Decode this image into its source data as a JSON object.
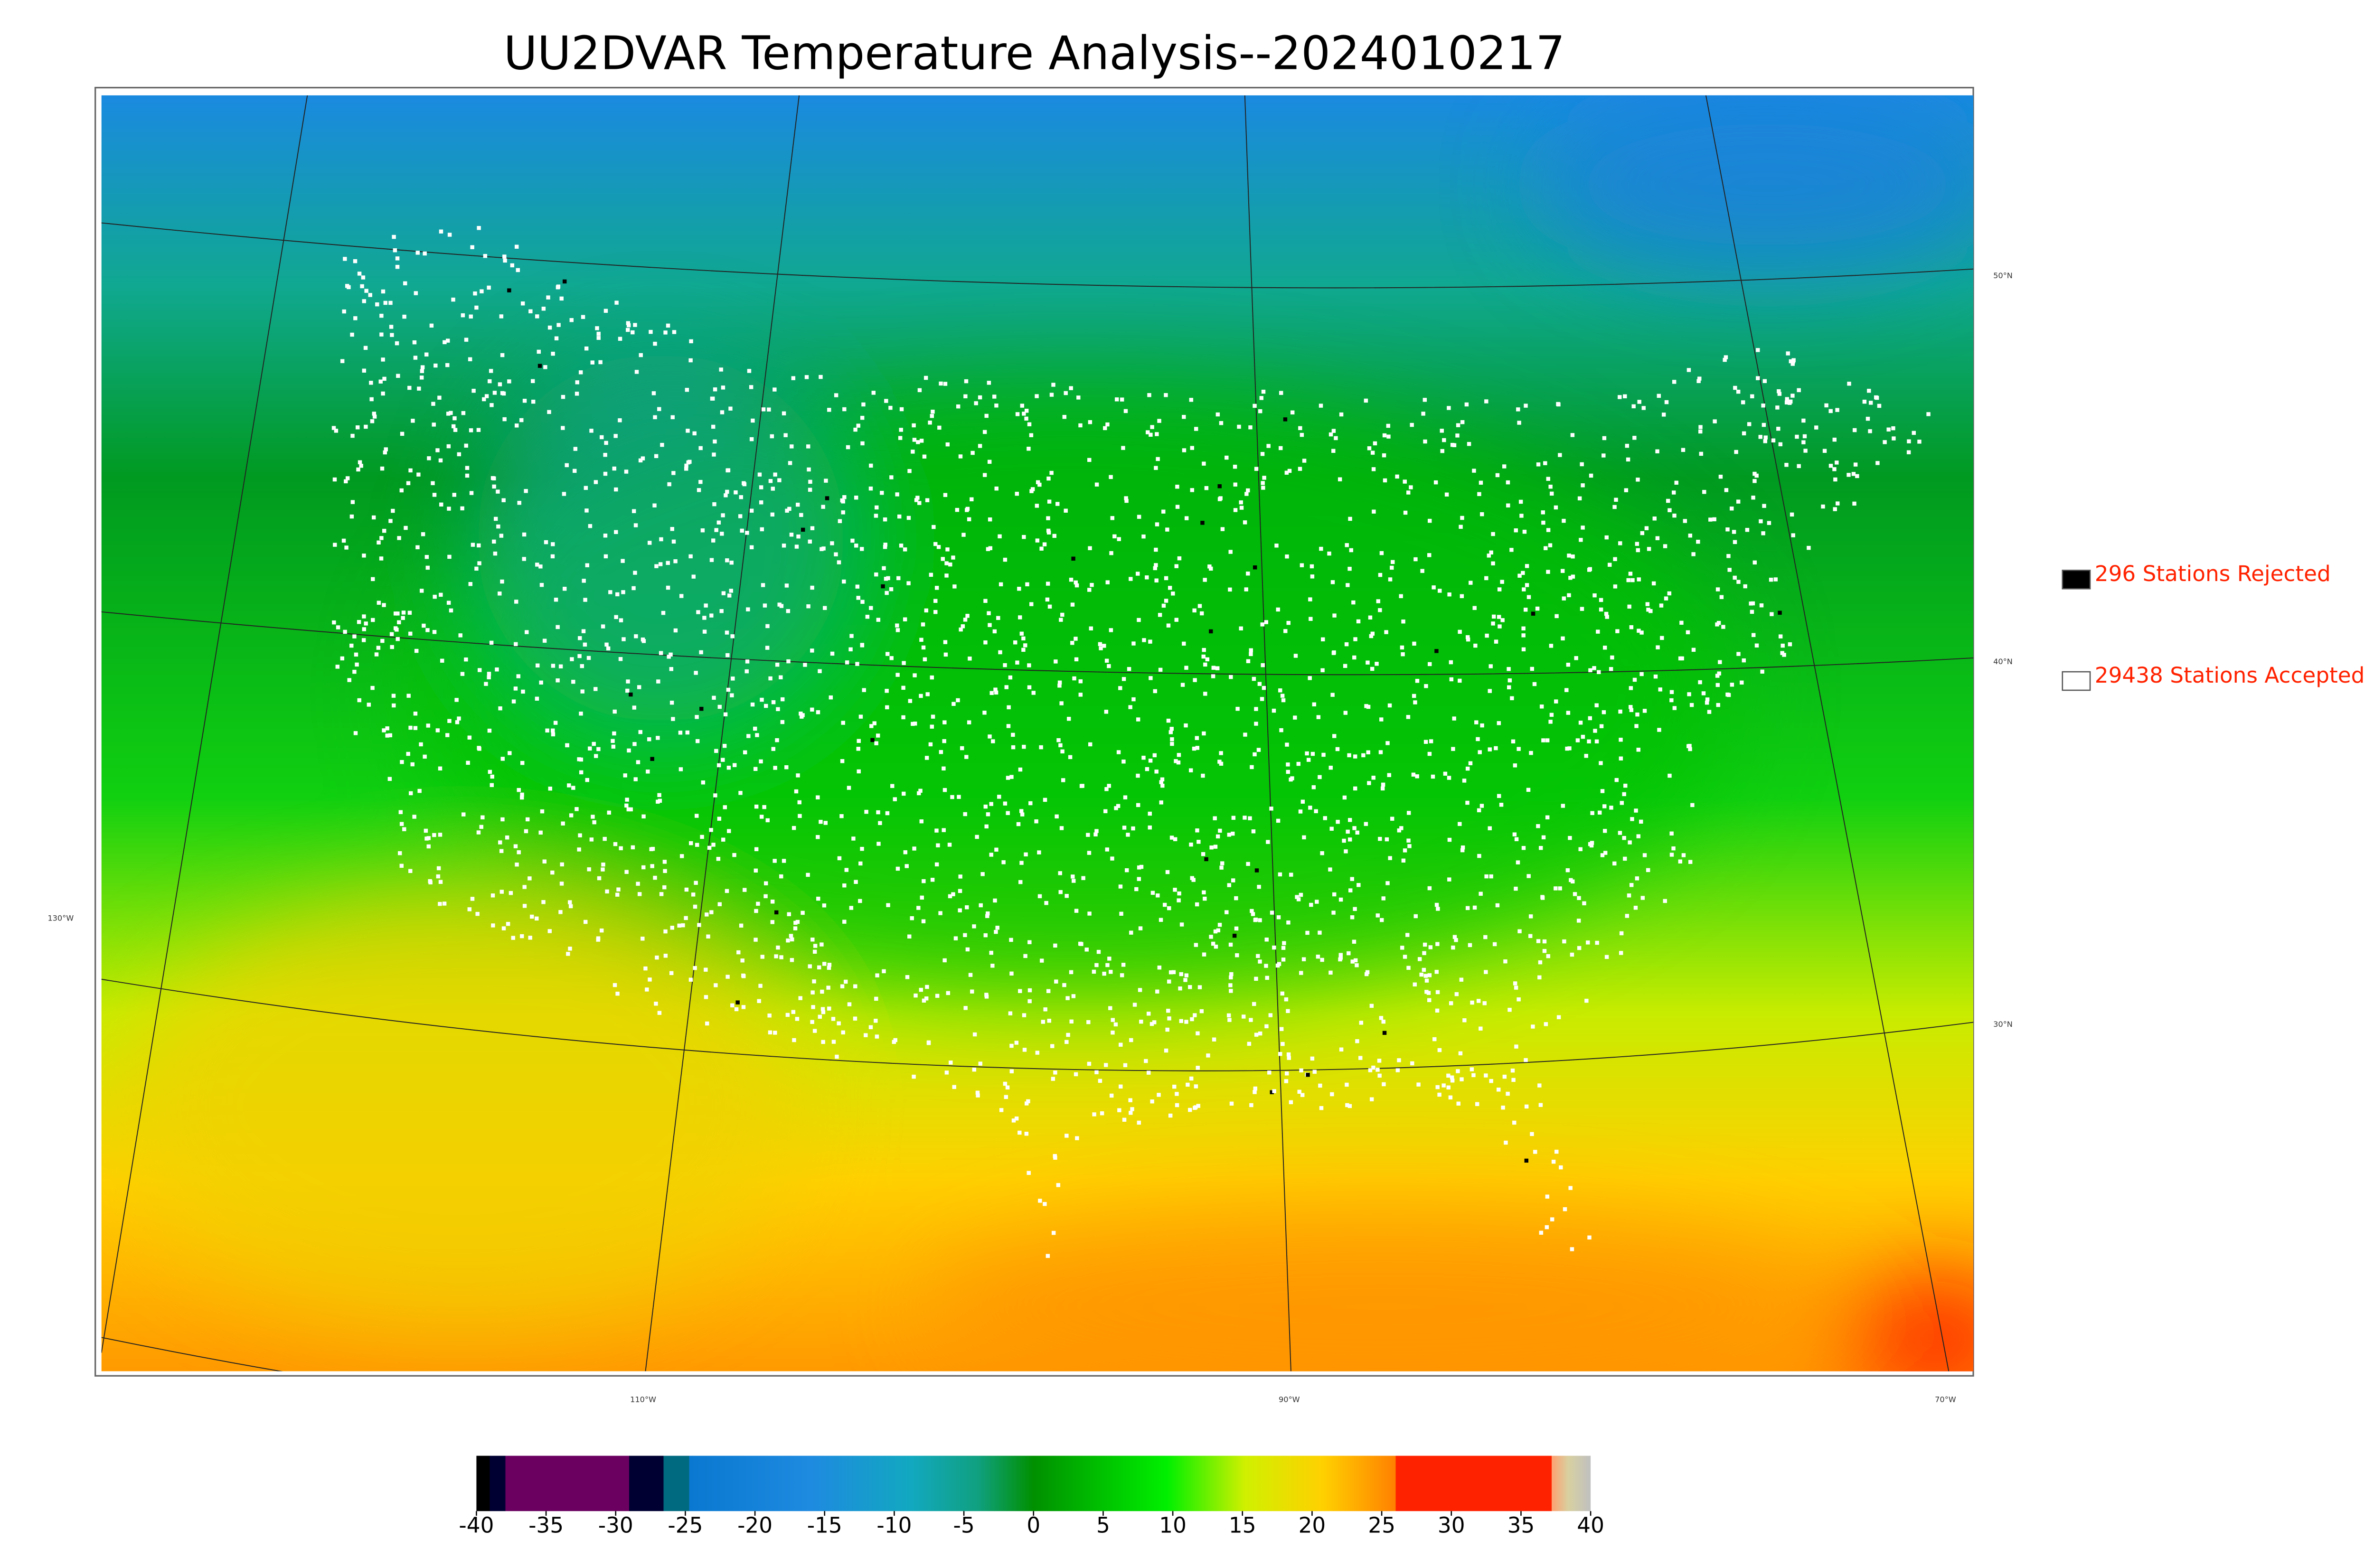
{
  "title": "UU2DVAR Temperature Analysis--2024010217",
  "legend": [
    {
      "label": "296 Stations Rejected",
      "color": "#000000"
    },
    {
      "label": "29438 Stations Accepted",
      "color": "#ffffff"
    }
  ],
  "graticule": {
    "latitudes": [
      "50°N",
      "40°N",
      "30°N"
    ],
    "longitudes": [
      "130°W",
      "110°W",
      "90°W",
      "70°W"
    ]
  },
  "colorbar": {
    "range": [
      -40,
      40
    ],
    "ticks": [
      -40,
      -35,
      -30,
      -25,
      -20,
      -15,
      -10,
      -5,
      0,
      5,
      10,
      15,
      20,
      25,
      30,
      35,
      40
    ]
  }
}
